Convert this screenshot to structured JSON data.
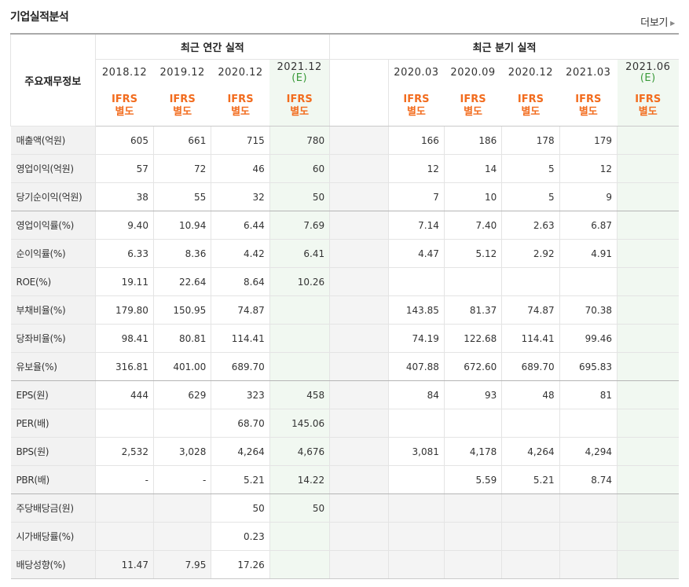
{
  "title": "기업실적분석",
  "more_label": "더보기",
  "table": {
    "row_header_label": "주요재무정보",
    "annual_group_label": "최근 연간 실적",
    "quarter_group_label": "최근 분기 실적",
    "annual_columns": [
      {
        "date": "2018.12",
        "est": "",
        "std1": "IFRS",
        "std2": "별도"
      },
      {
        "date": "2019.12",
        "est": "",
        "std1": "IFRS",
        "std2": "별도"
      },
      {
        "date": "2020.12",
        "est": "",
        "std1": "IFRS",
        "std2": "별도"
      },
      {
        "date": "2021.12",
        "est": "(E)",
        "std1": "IFRS",
        "std2": "별도"
      }
    ],
    "quarter_columns": [
      {
        "date": "2020.03",
        "est": "",
        "std1": "IFRS",
        "std2": "별도"
      },
      {
        "date": "2020.09",
        "est": "",
        "std1": "IFRS",
        "std2": "별도"
      },
      {
        "date": "2020.12",
        "est": "",
        "std1": "IFRS",
        "std2": "별도"
      },
      {
        "date": "2021.03",
        "est": "",
        "std1": "IFRS",
        "std2": "별도"
      },
      {
        "date": "2021.06",
        "est": "(E)",
        "std1": "IFRS",
        "std2": "별도"
      }
    ],
    "rows": [
      {
        "label": "매출액(억원)",
        "annual": [
          "605",
          "661",
          "715",
          "780"
        ],
        "quarter": [
          "166",
          "186",
          "178",
          "179",
          ""
        ]
      },
      {
        "label": "영업이익(억원)",
        "annual": [
          "57",
          "72",
          "46",
          "60"
        ],
        "quarter": [
          "12",
          "14",
          "5",
          "12",
          ""
        ]
      },
      {
        "label": "당기순이익(억원)",
        "annual": [
          "38",
          "55",
          "32",
          "50"
        ],
        "quarter": [
          "7",
          "10",
          "5",
          "9",
          ""
        ]
      },
      {
        "label": "영업이익률(%)",
        "annual": [
          "9.40",
          "10.94",
          "6.44",
          "7.69"
        ],
        "quarter": [
          "7.14",
          "7.40",
          "2.63",
          "6.87",
          ""
        ]
      },
      {
        "label": "순이익률(%)",
        "annual": [
          "6.33",
          "8.36",
          "4.42",
          "6.41"
        ],
        "quarter": [
          "4.47",
          "5.12",
          "2.92",
          "4.91",
          ""
        ]
      },
      {
        "label": "ROE(%)",
        "annual": [
          "19.11",
          "22.64",
          "8.64",
          "10.26"
        ],
        "quarter": [
          "",
          "",
          "",
          "",
          ""
        ]
      },
      {
        "label": "부채비율(%)",
        "annual": [
          "179.80",
          "150.95",
          "74.87",
          ""
        ],
        "quarter": [
          "143.85",
          "81.37",
          "74.87",
          "70.38",
          ""
        ]
      },
      {
        "label": "당좌비율(%)",
        "annual": [
          "98.41",
          "80.81",
          "114.41",
          ""
        ],
        "quarter": [
          "74.19",
          "122.68",
          "114.41",
          "99.46",
          ""
        ]
      },
      {
        "label": "유보율(%)",
        "annual": [
          "316.81",
          "401.00",
          "689.70",
          ""
        ],
        "quarter": [
          "407.88",
          "672.60",
          "689.70",
          "695.83",
          ""
        ]
      },
      {
        "label": "EPS(원)",
        "annual": [
          "444",
          "629",
          "323",
          "458"
        ],
        "quarter": [
          "84",
          "93",
          "48",
          "81",
          ""
        ]
      },
      {
        "label": "PER(배)",
        "annual": [
          "",
          "",
          "68.70",
          "145.06"
        ],
        "quarter": [
          "",
          "",
          "",
          "",
          ""
        ]
      },
      {
        "label": "BPS(원)",
        "annual": [
          "2,532",
          "3,028",
          "4,264",
          "4,676"
        ],
        "quarter": [
          "3,081",
          "4,178",
          "4,264",
          "4,294",
          ""
        ]
      },
      {
        "label": "PBR(배)",
        "annual": [
          "-",
          "-",
          "5.21",
          "14.22"
        ],
        "quarter": [
          "",
          "5.59",
          "5.21",
          "8.74",
          ""
        ]
      },
      {
        "label": "주당배당금(원)",
        "annual": [
          "",
          "",
          "50",
          "50"
        ],
        "quarter": [
          "",
          "",
          "",
          "",
          ""
        ]
      },
      {
        "label": "시가배당률(%)",
        "annual": [
          "",
          "",
          "0.23",
          ""
        ],
        "quarter": [
          "",
          "",
          "",
          "",
          ""
        ]
      },
      {
        "label": "배당성향(%)",
        "annual": [
          "11.47",
          "7.95",
          "17.26",
          ""
        ],
        "quarter": [
          "",
          "",
          "",
          "",
          ""
        ]
      }
    ]
  }
}
